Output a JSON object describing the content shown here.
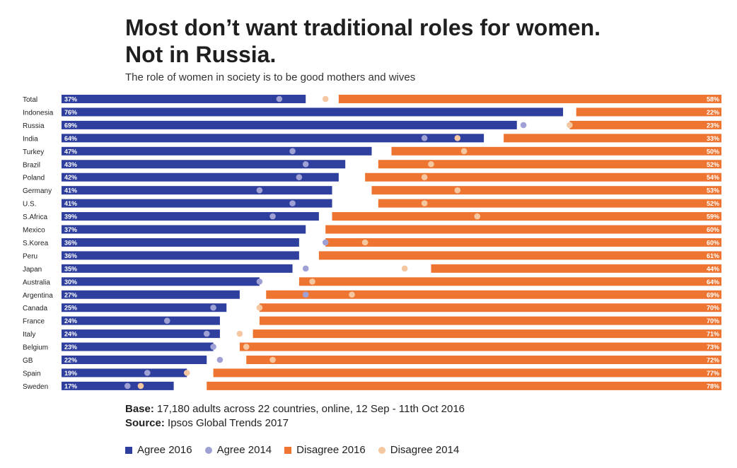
{
  "title_line1": "Most don’t want traditional roles for women.",
  "title_line2": "Not in Russia.",
  "footer": {
    "base_label": "Base:",
    "base_text": " 17,180 adults across 22 countries, online, 12 Sep - 11th Oct 2016",
    "source_label": "Source:",
    "source_text": " Ipsos Global Trends 2017"
  },
  "colors": {
    "agree_2016": "#2E3F9E",
    "agree_2014": "#9FA0D4",
    "disagree_2016": "#EE7531",
    "disagree_2014": "#F5C7A1"
  },
  "chart_data": {
    "type": "bar",
    "subtitle": "The role of women in society is to be good mothers and wives",
    "categories": [
      "Total",
      "Indonesia",
      "Russia",
      "India",
      "Turkey",
      "Brazil",
      "Poland",
      "Germany",
      "U.S.",
      "S.Africa",
      "Mexico",
      "S.Korea",
      "Peru",
      "Japan",
      "Australia",
      "Argentina",
      "Canada",
      "France",
      "Italy",
      "Belgium",
      "GB",
      "Spain",
      "Sweden"
    ],
    "series": [
      {
        "name": "Agree 2016",
        "values": [
          37,
          76,
          69,
          64,
          47,
          43,
          42,
          41,
          41,
          39,
          37,
          36,
          36,
          35,
          30,
          27,
          25,
          24,
          24,
          23,
          22,
          19,
          17
        ]
      },
      {
        "name": "Agree 2014",
        "values": [
          33,
          null,
          70,
          55,
          35,
          37,
          36,
          30,
          35,
          32,
          null,
          40,
          null,
          37,
          30,
          37,
          23,
          16,
          22,
          23,
          24,
          13,
          10
        ]
      },
      {
        "name": "Disagree 2016",
        "values": [
          58,
          22,
          23,
          33,
          50,
          52,
          54,
          53,
          52,
          59,
          60,
          60,
          61,
          44,
          64,
          69,
          70,
          70,
          71,
          73,
          72,
          77,
          78
        ]
      },
      {
        "name": "Disagree 2014",
        "values": [
          60,
          null,
          23,
          40,
          39,
          44,
          45,
          40,
          45,
          37,
          null,
          54,
          null,
          48,
          62,
          56,
          70,
          null,
          73,
          72,
          68,
          81,
          88
        ]
      }
    ],
    "labels": {
      "agree_2016": [
        "37%",
        "76%",
        "69%",
        "64%",
        "47%",
        "43%",
        "42%",
        "41%",
        "41%",
        "39%",
        "37%",
        "36%",
        "36%",
        "35%",
        "30%",
        "27%",
        "25%",
        "24%",
        "24%",
        "23%",
        "22%",
        "19%",
        "17%"
      ],
      "disagree_2016": [
        "58%",
        "22%",
        "23%",
        "33%",
        "50%",
        "52%",
        "54%",
        "53%",
        "52%",
        "59%",
        "60%",
        "60%",
        "61%",
        "44%",
        "64%",
        "69%",
        "70%",
        "70%",
        "71%",
        "73%",
        "72%",
        "77%",
        "78%"
      ]
    },
    "xlim": [
      0,
      100
    ],
    "legend_position": "bottom",
    "legend": [
      "Agree 2016",
      "Agree 2014",
      "Disagree 2016",
      "Disagree 2014"
    ]
  }
}
